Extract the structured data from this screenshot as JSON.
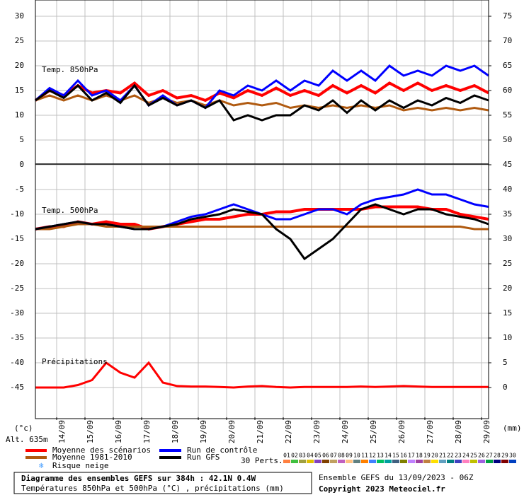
{
  "chart_data": {
    "type": "line",
    "title": "Diagramme des ensembles GEFS sur 384h : 42.1N 0.4W",
    "subtitle": "Températures 850hPa et 500hPa (°C) , précipitations (mm)",
    "run_info": "Ensemble GEFS du 13/09/2023 - 06Z",
    "copyright": "Copyright 2023 Meteociel.fr",
    "altitude": "Alt. 635m",
    "y_unit": "(°c)",
    "y2_unit": "(mm)",
    "panel_labels": [
      "Temp. 850hPa",
      "Temp. 500hPa",
      "Précipitations"
    ],
    "x": [
      0,
      12,
      24,
      36,
      48,
      60,
      72,
      84,
      96,
      108,
      120,
      132,
      144,
      156,
      168,
      180,
      192,
      204,
      216,
      228,
      240,
      252,
      264,
      276,
      288,
      300,
      312,
      324,
      336,
      348,
      360,
      372,
      384
    ],
    "xlim": [
      0,
      384
    ],
    "xticks": [
      {
        "value": 18,
        "label": "14/09"
      },
      {
        "value": 42,
        "label": "15/09"
      },
      {
        "value": 66,
        "label": "16/09"
      },
      {
        "value": 90,
        "label": "17/09"
      },
      {
        "value": 114,
        "label": "18/09"
      },
      {
        "value": 138,
        "label": "19/09"
      },
      {
        "value": 162,
        "label": "20/09"
      },
      {
        "value": 186,
        "label": "21/09"
      },
      {
        "value": 210,
        "label": "22/09"
      },
      {
        "value": 234,
        "label": "23/09"
      },
      {
        "value": 258,
        "label": "24/09"
      },
      {
        "value": 282,
        "label": "25/09"
      },
      {
        "value": 306,
        "label": "26/09"
      },
      {
        "value": 330,
        "label": "27/09"
      },
      {
        "value": 354,
        "label": "28/09"
      },
      {
        "value": 378,
        "label": "29/09"
      }
    ],
    "ylim": [
      -51,
      30
    ],
    "yticks": [
      30,
      25,
      20,
      15,
      10,
      5,
      0,
      -5,
      -10,
      -15,
      -20,
      -25,
      -30,
      -35,
      -40,
      -45
    ],
    "y2lim": [
      -6,
      75
    ],
    "y2ticks": [
      75,
      70,
      65,
      60,
      55,
      50,
      45,
      40,
      35,
      30,
      25,
      20,
      15,
      10,
      5,
      0
    ],
    "grid": true,
    "series": [
      {
        "name": "Moyenne des scénarios",
        "color": "#ff0000",
        "t850": [
          13,
          15,
          14,
          16,
          14.5,
          15,
          14.5,
          16.5,
          14,
          15,
          13.5,
          14,
          13,
          14.5,
          13.5,
          15,
          14,
          15.5,
          14,
          15,
          14,
          16,
          14.5,
          16,
          14.5,
          16.5,
          15,
          16.5,
          15,
          16,
          15,
          16,
          14.5
        ],
        "t500": [
          -13,
          -12.5,
          -12.5,
          -11.5,
          -12,
          -11.5,
          -12,
          -12,
          -13,
          -12.5,
          -12,
          -11.5,
          -11,
          -11,
          -10.5,
          -10,
          -10,
          -9.5,
          -9.5,
          -9,
          -9,
          -9,
          -9,
          -9,
          -8.5,
          -8.5,
          -8.5,
          -8.5,
          -9,
          -9,
          -10,
          -10.5,
          -11
        ],
        "precip": [
          0,
          0,
          0,
          0.5,
          1.5,
          5,
          3,
          2,
          5,
          1,
          0.3,
          0.2,
          0.2,
          0.1,
          0,
          0.2,
          0.3,
          0.1,
          0,
          0.1,
          0.1,
          0.1,
          0.1,
          0.2,
          0.1,
          0.2,
          0.3,
          0.2,
          0.1,
          0.1,
          0.1,
          0.1,
          0.1
        ]
      },
      {
        "name": "Moyenne 1981-2010",
        "color": "#b05a10",
        "t850": [
          13,
          14,
          13,
          14,
          13,
          14,
          13,
          14,
          12.5,
          13.5,
          12.5,
          13,
          12,
          13,
          12,
          12.5,
          12,
          12.5,
          11.5,
          12,
          11.5,
          12,
          11.5,
          12,
          11.5,
          12,
          11,
          11.5,
          11,
          11.5,
          11,
          11.5,
          11
        ],
        "t500": [
          -13,
          -13,
          -12.5,
          -12,
          -12,
          -12.5,
          -12.5,
          -12.5,
          -12.5,
          -12.5,
          -12.5,
          -12.5,
          -12.5,
          -12.5,
          -12.5,
          -12.5,
          -12.5,
          -12.5,
          -12.5,
          -12.5,
          -12.5,
          -12.5,
          -12.5,
          -12.5,
          -12.5,
          -12.5,
          -12.5,
          -12.5,
          -12.5,
          -12.5,
          -12.5,
          -13,
          -13
        ]
      },
      {
        "name": "Run de contrôle",
        "color": "#0000ff",
        "t850": [
          13,
          15.5,
          14,
          17,
          14,
          15,
          13,
          16,
          12,
          14,
          12,
          13,
          11.5,
          15,
          14,
          16,
          15,
          17,
          15,
          17,
          16,
          19,
          17,
          19,
          17,
          20,
          18,
          19,
          18,
          20,
          19,
          20,
          18
        ],
        "t500": [
          -13,
          -12.5,
          -12,
          -11.5,
          -12,
          -12,
          -12.5,
          -13,
          -13,
          -12.5,
          -11.5,
          -10.5,
          -10,
          -9,
          -8,
          -9,
          -10,
          -11,
          -11,
          -10,
          -9,
          -9,
          -10,
          -8,
          -7,
          -6.5,
          -6,
          -5,
          -6,
          -6,
          -7,
          -8,
          -8.5
        ]
      },
      {
        "name": "Run GFS",
        "color": "#000000",
        "t850": [
          13,
          15,
          13.5,
          16,
          13,
          14.5,
          12.5,
          16,
          12,
          13.5,
          12,
          13,
          11.5,
          13,
          9,
          10,
          9,
          10,
          10,
          12,
          11,
          13,
          10.5,
          13,
          11,
          13,
          11.5,
          13,
          12,
          13.5,
          12.5,
          14,
          13
        ],
        "t500": [
          -13,
          -12.5,
          -12,
          -11.5,
          -12,
          -12,
          -12.5,
          -13,
          -13,
          -12.5,
          -12,
          -11,
          -10.5,
          -10,
          -9,
          -9.5,
          -10,
          -13,
          -15,
          -19,
          -17,
          -15,
          -12,
          -9,
          -8,
          -9,
          -10,
          -9,
          -9,
          -10,
          -10.5,
          -11,
          -12
        ]
      }
    ],
    "snow_legend": "Risque neige",
    "perturbations_label": "30 Perts.",
    "perturbations": [
      {
        "label": "01",
        "color": "#ff8040"
      },
      {
        "label": "02",
        "color": "#40c040"
      },
      {
        "label": "03",
        "color": "#a0a040"
      },
      {
        "label": "04",
        "color": "#e0c000"
      },
      {
        "label": "05",
        "color": "#8040c0"
      },
      {
        "label": "06",
        "color": "#804000"
      },
      {
        "label": "07",
        "color": "#c0a060"
      },
      {
        "label": "08",
        "color": "#c060c0"
      },
      {
        "label": "09",
        "color": "#ffc080"
      },
      {
        "label": "10",
        "color": "#608080"
      },
      {
        "label": "11",
        "color": "#ff8000"
      },
      {
        "label": "12",
        "color": "#4080ff"
      },
      {
        "label": "13",
        "color": "#00c060"
      },
      {
        "label": "14",
        "color": "#00a0a0"
      },
      {
        "label": "15",
        "color": "#406080"
      },
      {
        "label": "16",
        "color": "#808000"
      },
      {
        "label": "17",
        "color": "#c080ff"
      },
      {
        "label": "18",
        "color": "#a040a0"
      },
      {
        "label": "19",
        "color": "#c08040"
      },
      {
        "label": "20",
        "color": "#ffe000"
      },
      {
        "label": "21",
        "color": "#60a0c0"
      },
      {
        "label": "22",
        "color": "#008080"
      },
      {
        "label": "23",
        "color": "#4040c0"
      },
      {
        "label": "24",
        "color": "#ff80c0"
      },
      {
        "label": "25",
        "color": "#c0c000"
      },
      {
        "label": "26",
        "color": "#a060e0"
      },
      {
        "label": "27",
        "color": "#00a040"
      },
      {
        "label": "28",
        "color": "#000080"
      },
      {
        "label": "29",
        "color": "#800000"
      },
      {
        "label": "30",
        "color": "#0040c0"
      }
    ]
  }
}
